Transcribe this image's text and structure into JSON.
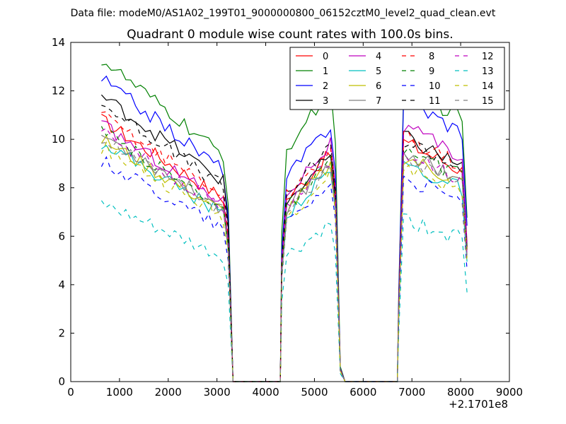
{
  "suptitle": "Data file: modeM0/AS1A02_199T01_9000000800_06152cztM0_level2_quad_clean.evt",
  "chart_data": {
    "type": "line",
    "title": "Quadrant 0 module wise count rates with 100.0s bins.",
    "xlabel": "",
    "ylabel": "",
    "x_offset_label": "+2.1701e8",
    "xlim": [
      0,
      9000
    ],
    "ylim": [
      0,
      14
    ],
    "xticks": [
      0,
      1000,
      2000,
      3000,
      4000,
      5000,
      6000,
      7000,
      8000,
      9000
    ],
    "yticks": [
      0,
      2,
      4,
      6,
      8,
      10,
      12,
      14
    ],
    "legend_position": "top-right",
    "legend_columns": 4,
    "gaps": [
      {
        "from": 3300,
        "to": 4300,
        "value": 0
      },
      {
        "from": 5600,
        "to": 6700,
        "value": 0
      }
    ],
    "segments_x": [
      [
        630,
        730,
        830,
        930,
        1030,
        1130,
        1230,
        1330,
        1430,
        1530,
        1630,
        1730,
        1830,
        1930,
        2030,
        2130,
        2230,
        2330,
        2430,
        2530,
        2630,
        2730,
        2830,
        2930,
        3030,
        3130,
        3230,
        3330
      ],
      [
        4330,
        4430,
        4530,
        4630,
        4730,
        4830,
        4930,
        5030,
        5130,
        5230,
        5330,
        5430,
        5530,
        5630
      ],
      [
        6730,
        6830,
        6930,
        7030,
        7130,
        7230,
        7330,
        7430,
        7530,
        7630,
        7730,
        7830,
        7930,
        8030,
        8130
      ]
    ],
    "series": [
      {
        "name": "0",
        "color": "#ff0000",
        "dash": "solid",
        "peaks": [
          10.8,
          9.6,
          9.9
        ]
      },
      {
        "name": "1",
        "color": "#008000",
        "dash": "solid",
        "peaks": [
          13.3,
          12.3,
          12.3
        ]
      },
      {
        "name": "2",
        "color": "#0000ff",
        "dash": "solid",
        "peaks": [
          12.5,
          10.8,
          11.7
        ]
      },
      {
        "name": "3",
        "color": "#000000",
        "dash": "solid",
        "peaks": [
          11.8,
          9.5,
          10.1
        ]
      },
      {
        "name": "4",
        "color": "#bf00bf",
        "dash": "solid",
        "peaks": [
          10.6,
          10.0,
          10.5
        ]
      },
      {
        "name": "5",
        "color": "#00bfbf",
        "dash": "solid",
        "peaks": [
          9.9,
          8.9,
          9.0
        ]
      },
      {
        "name": "6",
        "color": "#bfbf00",
        "dash": "solid",
        "peaks": [
          10.0,
          9.1,
          9.3
        ]
      },
      {
        "name": "7",
        "color": "#808080",
        "dash": "solid",
        "peaks": [
          10.2,
          9.2,
          9.5
        ]
      },
      {
        "name": "8",
        "color": "#ff0000",
        "dash": "dashed",
        "peaks": [
          11.0,
          9.8,
          10.1
        ]
      },
      {
        "name": "9",
        "color": "#008000",
        "dash": "dashed",
        "peaks": [
          10.3,
          9.2,
          9.6
        ]
      },
      {
        "name": "10",
        "color": "#0000ff",
        "dash": "dashed",
        "peaks": [
          9.1,
          8.4,
          8.4
        ]
      },
      {
        "name": "11",
        "color": "#000000",
        "dash": "dashed",
        "peaks": [
          11.5,
          9.9,
          10.0
        ]
      },
      {
        "name": "12",
        "color": "#bf00bf",
        "dash": "dashed",
        "peaks": [
          10.3,
          9.3,
          9.5
        ]
      },
      {
        "name": "13",
        "color": "#00bfbf",
        "dash": "dashed",
        "peaks": [
          7.3,
          6.6,
          6.7
        ]
      },
      {
        "name": "14",
        "color": "#bfbf00",
        "dash": "dashed",
        "peaks": [
          9.7,
          8.7,
          8.9
        ]
      },
      {
        "name": "15",
        "color": "#808080",
        "dash": "dashed",
        "peaks": [
          10.0,
          9.0,
          9.3
        ]
      }
    ]
  }
}
